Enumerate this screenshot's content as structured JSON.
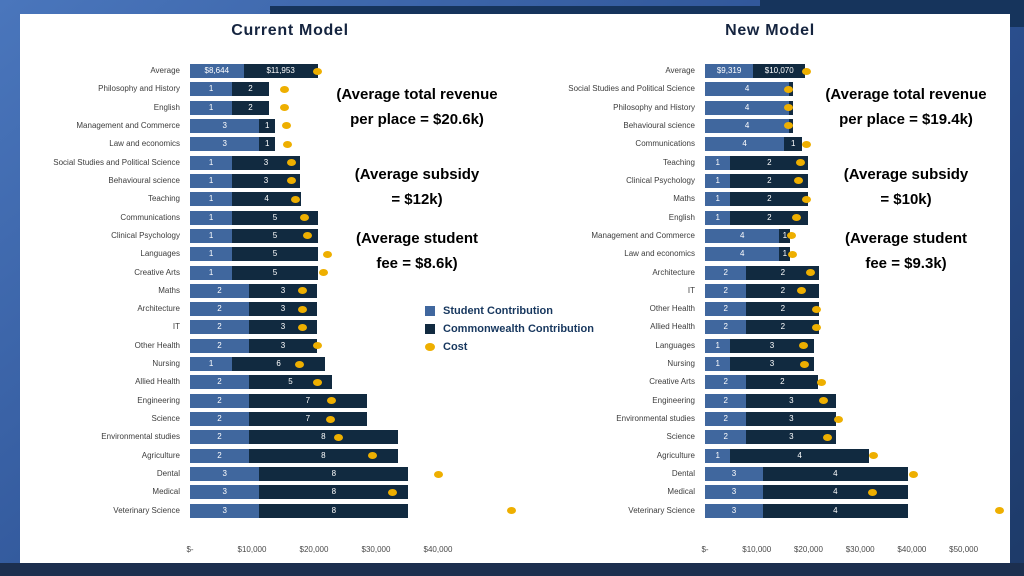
{
  "colors": {
    "student": "#40679E",
    "commonwealth": "#112A40",
    "cost": "#EEAF00",
    "frame_blue": "#2C5193",
    "frame_dark_accent": "#16345C",
    "title_text": "#15243F",
    "legend_text": "#17375E"
  },
  "legend": {
    "items": [
      {
        "label": "Student Contribution",
        "key": "student"
      },
      {
        "label": "Commonwealth Contribution",
        "key": "commonwealth"
      },
      {
        "label": "Cost",
        "key": "cost"
      }
    ]
  },
  "chart_data": [
    {
      "type": "bar",
      "orientation": "horizontal-stacked",
      "title": "Current Model",
      "units": "$ thousands",
      "x_ticks": [
        "$-",
        "$10,000",
        "$20,000",
        "$30,000",
        "$40,000"
      ],
      "x_tick_values_k": [
        0,
        10,
        20,
        30,
        40
      ],
      "x_max_k": 60,
      "categories": [
        "Average",
        "Philosophy and History",
        "English",
        "Management and Commerce",
        "Law and economics",
        "Social Studies and Political Science",
        "Behavioural science",
        "Teaching",
        "Communications",
        "Clinical Psychology",
        "Languages",
        "Creative Arts",
        "Maths",
        "Architecture",
        "IT",
        "Other Health",
        "Nursing",
        "Allied Health",
        "Engineering",
        "Science",
        "Environmental studies",
        "Agriculture",
        "Dental",
        "Medical",
        "Veterinary Science"
      ],
      "series": [
        {
          "name": "Student Contribution",
          "values": [
            8.644,
            6.8,
            6.8,
            11.2,
            11.2,
            6.8,
            6.8,
            6.8,
            6.8,
            6.8,
            6.8,
            6.8,
            9.5,
            9.5,
            9.5,
            9.5,
            6.8,
            9.5,
            9.5,
            9.5,
            9.5,
            9.5,
            11.2,
            11.2,
            11.2
          ],
          "labels": [
            "$8,644",
            "1",
            "1",
            "3",
            "3",
            "1",
            "1",
            "1",
            "1",
            "1",
            "1",
            "1",
            "2",
            "2",
            "2",
            "2",
            "1",
            "2",
            "2",
            "2",
            "2",
            "2",
            "3",
            "3",
            "3"
          ]
        },
        {
          "name": "Commonwealth Contribution",
          "values": [
            11.953,
            5.9,
            5.9,
            2.5,
            2.5,
            10.9,
            10.9,
            11.1,
            13.8,
            13.8,
            13.8,
            13.8,
            11.0,
            11.0,
            11.0,
            11.0,
            15.0,
            13.4,
            19.0,
            19.0,
            24.0,
            24.0,
            24.0,
            24.0,
            24.0
          ],
          "labels": [
            "$11,953",
            "2",
            "2",
            "1",
            "1",
            "3",
            "3",
            "4",
            "5",
            "5",
            "5",
            "5",
            "3",
            "3",
            "3",
            "3",
            "6",
            "5",
            "7",
            "7",
            "8",
            "8",
            "8",
            "8",
            "8"
          ]
        },
        {
          "name": "Cost",
          "type": "point",
          "values": [
            20.6,
            15.3,
            15.3,
            15.6,
            15.8,
            16.3,
            16.3,
            17.0,
            18.4,
            18.9,
            22.1,
            21.6,
            18.2,
            18.2,
            18.1,
            20.6,
            17.7,
            20.5,
            22.9,
            22.7,
            23.9,
            29.5,
            40.0,
            32.6,
            51.9
          ]
        }
      ],
      "annotations": [
        "(Average total revenue\nper place = $20.6k)",
        "(Average subsidy\n= $12k)",
        "(Average student\nfee = $8.6k)"
      ]
    },
    {
      "type": "bar",
      "orientation": "horizontal-stacked",
      "title": "New Model",
      "units": "$ thousands",
      "x_ticks": [
        "$-",
        "$10,000",
        "$20,000",
        "$30,000",
        "$40,000",
        "$50,000"
      ],
      "x_tick_values_k": [
        0,
        10,
        20,
        30,
        40,
        50
      ],
      "x_max_k": 58,
      "categories": [
        "Average",
        "Social Studies and Political Science",
        "Philosophy and History",
        "Behavioural science",
        "Communications",
        "Teaching",
        "Clinical Psychology",
        "Maths",
        "English",
        "Management and Commerce",
        "Law and economics",
        "Architecture",
        "IT",
        "Other Health",
        "Allied Health",
        "Languages",
        "Nursing",
        "Creative Arts",
        "Engineering",
        "Environmental studies",
        "Science",
        "Agriculture",
        "Dental",
        "Medical",
        "Veterinary Science"
      ],
      "series": [
        {
          "name": "Student Contribution",
          "values": [
            9.319,
            16.3,
            16.3,
            16.3,
            15.3,
            4.9,
            4.9,
            4.9,
            4.9,
            14.4,
            14.4,
            8.0,
            8.0,
            8.0,
            8.0,
            4.9,
            4.9,
            8.0,
            8.0,
            8.0,
            8.0,
            4.9,
            11.2,
            11.2,
            11.2
          ],
          "labels": [
            "$9,319",
            "4",
            "4",
            "4",
            "4",
            "1",
            "1",
            "1",
            "1",
            "4",
            "4",
            "2",
            "2",
            "2",
            "2",
            "1",
            "1",
            "2",
            "2",
            "2",
            "2",
            "1",
            "3",
            "3",
            "3"
          ]
        },
        {
          "name": "Commonwealth Contribution",
          "values": [
            10.07,
            0.7,
            0.7,
            0.7,
            3.5,
            15.1,
            15.1,
            15.1,
            15.1,
            2.1,
            2.1,
            14.1,
            14.1,
            14.1,
            14.1,
            16.1,
            16.1,
            13.9,
            17.4,
            17.4,
            17.4,
            26.8,
            28.0,
            28.0,
            28.0
          ],
          "labels": [
            "$10,070",
            "",
            "",
            "",
            "1",
            "2",
            "2",
            "2",
            "2",
            "1",
            "1",
            "2",
            "2",
            "2",
            "2",
            "3",
            "3",
            "2",
            "3",
            "3",
            "3",
            "4",
            "4",
            "4",
            "4"
          ]
        },
        {
          "name": "Cost",
          "type": "point",
          "values": [
            19.6,
            16.2,
            16.2,
            16.2,
            19.6,
            18.4,
            18.1,
            19.6,
            17.7,
            16.7,
            16.9,
            20.4,
            18.6,
            21.6,
            21.6,
            19.0,
            19.2,
            22.5,
            22.9,
            25.9,
            23.6,
            32.6,
            40.4,
            32.4,
            57.0
          ]
        }
      ],
      "annotations": [
        "(Average total revenue\nper place = $19.4k)",
        "(Average subsidy\n= $10k)",
        "(Average student\nfee = $9.3k)"
      ]
    }
  ]
}
